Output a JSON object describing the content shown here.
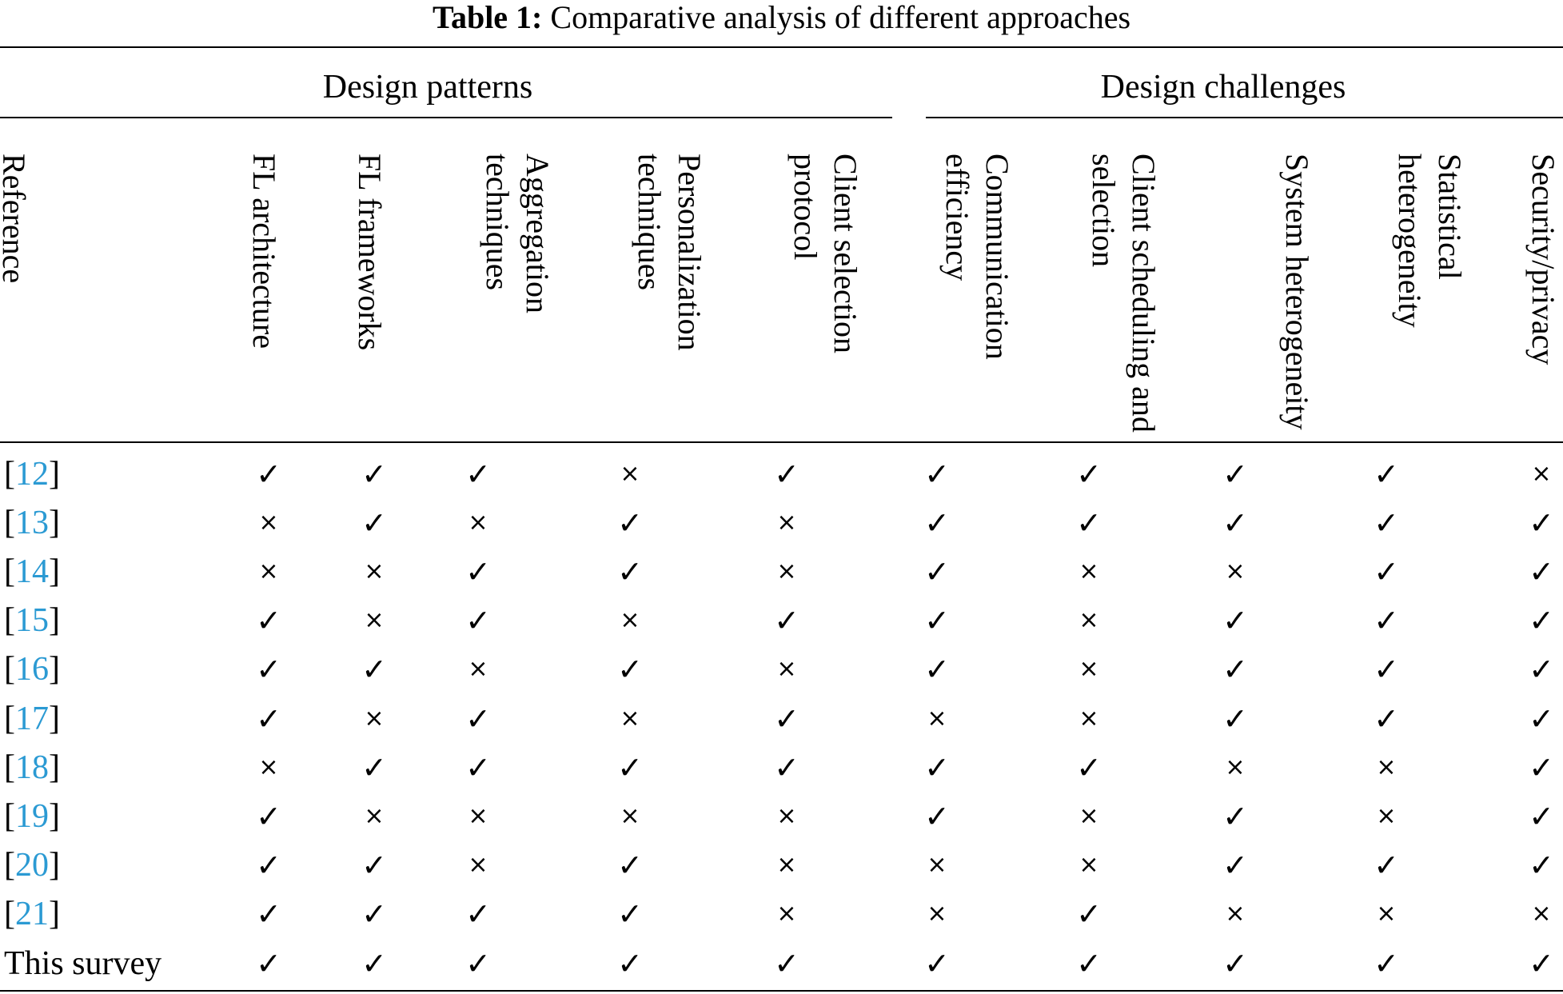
{
  "caption": {
    "label": "Table 1:",
    "text": "Comparative analysis of different approaches"
  },
  "groups": {
    "patterns": "Design patterns",
    "challenges": "Design challenges"
  },
  "columns": [
    "Reference",
    "FL architecture",
    "FL frameworks",
    "Aggregation techniques",
    "Personalization techniques",
    "Client selection protocol",
    "Communication efficiency",
    "Client scheduling and selection",
    "System heterogeneity",
    "Statistical heterogeneity",
    "Security/privacy"
  ],
  "symbols": {
    "yes": "✓",
    "no": "×",
    "yes_name": "check-mark-icon",
    "no_name": "cross-mark-icon"
  },
  "rows": [
    {
      "ref": "12",
      "marks": [
        true,
        true,
        true,
        false,
        true,
        true,
        true,
        true,
        true,
        false
      ]
    },
    {
      "ref": "13",
      "marks": [
        false,
        true,
        false,
        true,
        false,
        true,
        true,
        true,
        true,
        true
      ]
    },
    {
      "ref": "14",
      "marks": [
        false,
        false,
        true,
        true,
        false,
        true,
        false,
        false,
        true,
        true
      ]
    },
    {
      "ref": "15",
      "marks": [
        true,
        false,
        true,
        false,
        true,
        true,
        false,
        true,
        true,
        true
      ]
    },
    {
      "ref": "16",
      "marks": [
        true,
        true,
        false,
        true,
        false,
        true,
        false,
        true,
        true,
        true
      ]
    },
    {
      "ref": "17",
      "marks": [
        true,
        false,
        true,
        false,
        true,
        false,
        false,
        true,
        true,
        true
      ]
    },
    {
      "ref": "18",
      "marks": [
        false,
        true,
        true,
        true,
        true,
        true,
        true,
        false,
        false,
        true
      ]
    },
    {
      "ref": "19",
      "marks": [
        true,
        false,
        false,
        false,
        false,
        true,
        false,
        true,
        false,
        true
      ]
    },
    {
      "ref": "20",
      "marks": [
        true,
        true,
        false,
        true,
        false,
        false,
        false,
        true,
        true,
        true
      ]
    },
    {
      "ref": "21",
      "marks": [
        true,
        true,
        true,
        true,
        false,
        false,
        true,
        false,
        false,
        false
      ]
    },
    {
      "ref_text": "This survey",
      "marks": [
        true,
        true,
        true,
        true,
        true,
        true,
        true,
        true,
        true,
        true
      ]
    }
  ],
  "colors": {
    "link": "#2b9ad3",
    "text": "#000000"
  }
}
